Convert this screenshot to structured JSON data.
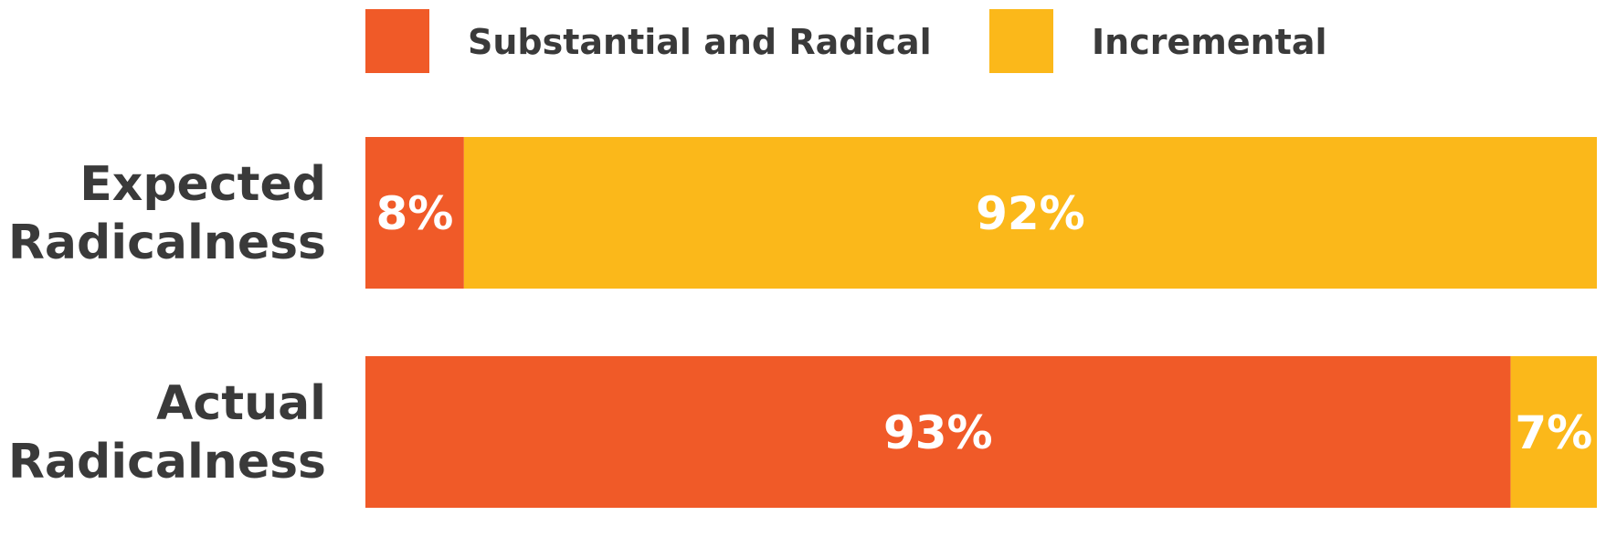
{
  "chart_data": {
    "type": "bar",
    "orientation": "horizontal",
    "stacked": true,
    "stack_total": 100,
    "categories": [
      [
        "Expected",
        "Radicalness"
      ],
      [
        "Actual",
        "Radicalness"
      ]
    ],
    "series": [
      {
        "name": "Substantial and Radical",
        "color": "#F05A28",
        "values": [
          8,
          93
        ],
        "labels": [
          "8%",
          "93%"
        ]
      },
      {
        "name": "Incremental",
        "color": "#FBB81A",
        "values": [
          92,
          7
        ],
        "labels": [
          "92%",
          "7%"
        ]
      }
    ],
    "legend": "top",
    "grid": false,
    "title": "",
    "xlabel": "",
    "ylabel": ""
  }
}
